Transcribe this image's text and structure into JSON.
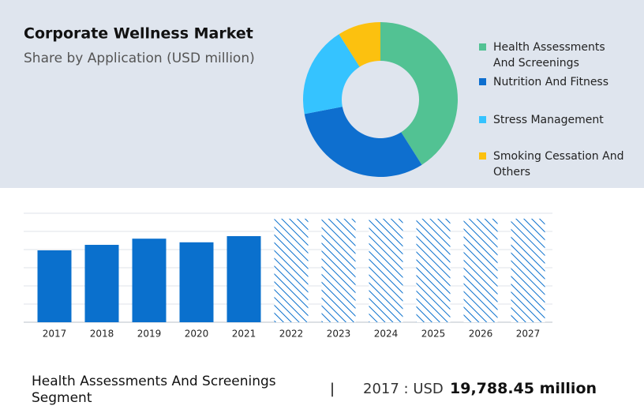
{
  "chart_data": [
    {
      "type": "pie",
      "title": "Corporate Wellness Market",
      "subtitle": "Share by Application (USD million)",
      "categories": [
        "Health Assessments And Screenings",
        "Nutrition And Fitness",
        "Stress Management",
        "Smoking Cessation And Others"
      ],
      "values": [
        41,
        31,
        19,
        9
      ],
      "colors": [
        "#52c293",
        "#0e6fcf",
        "#35c3ff",
        "#fcc10f"
      ],
      "legend": "right"
    },
    {
      "type": "bar",
      "categories": [
        "2017",
        "2018",
        "2019",
        "2020",
        "2021",
        "2022",
        "2023",
        "2024",
        "2025",
        "2026",
        "2027"
      ],
      "values": [
        19788.45,
        21300,
        23000,
        22000,
        23700,
        28500,
        28500,
        28500,
        28500,
        28500,
        28500
      ],
      "hatched": [
        false,
        false,
        false,
        false,
        false,
        true,
        true,
        true,
        true,
        true,
        true
      ],
      "color": "#0a70cd",
      "ylim": [
        0,
        30000
      ],
      "yticks": [
        0,
        5000,
        10000,
        15000,
        20000,
        25000,
        30000
      ],
      "grid": true
    }
  ],
  "footer": {
    "segment": "Health Assessments And Screenings Segment",
    "separator": "|",
    "label": "2017 : USD",
    "value": "19,788.45 million"
  }
}
